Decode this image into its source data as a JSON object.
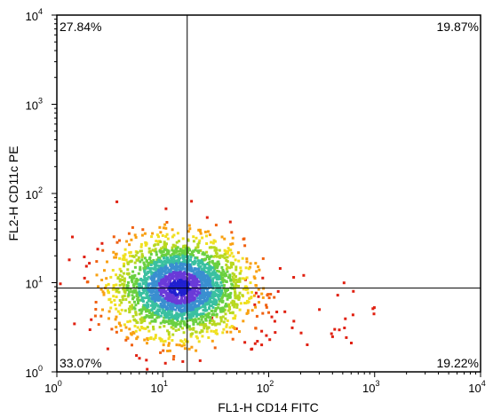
{
  "chart_data": {
    "type": "heatmap",
    "subtype": "flow-cytometry-density-dot-plot",
    "xlabel": "FL1-H CD14 FITC",
    "ylabel": "FL2-H CD11c PE",
    "x_scale": "log",
    "y_scale": "log",
    "xlim": [
      1,
      10000
    ],
    "ylim": [
      1,
      10000
    ],
    "x_ticks": [
      {
        "base": "10",
        "exp": "0",
        "value": 1
      },
      {
        "base": "10",
        "exp": "1",
        "value": 10
      },
      {
        "base": "10",
        "exp": "2",
        "value": 100
      },
      {
        "base": "10",
        "exp": "3",
        "value": 1000
      },
      {
        "base": "10",
        "exp": "4",
        "value": 10000
      }
    ],
    "y_ticks": [
      {
        "base": "10",
        "exp": "0",
        "value": 1
      },
      {
        "base": "10",
        "exp": "1",
        "value": 10
      },
      {
        "base": "10",
        "exp": "2",
        "value": 100
      },
      {
        "base": "10",
        "exp": "3",
        "value": 1000
      },
      {
        "base": "10",
        "exp": "4",
        "value": 10000
      }
    ],
    "quadrant_gate": {
      "x": 17,
      "y": 8.7
    },
    "quadrants": {
      "upper_left": "27.84%",
      "upper_right": "19.87%",
      "lower_left": "33.07%",
      "lower_right": "19.22%"
    },
    "population": {
      "center_x": 14.5,
      "center_y": 8.8,
      "spread_log_x": 0.3,
      "spread_log_y": 0.27,
      "colormap": [
        "#2020d0",
        "#6a3ad8",
        "#3a8fd0",
        "#3ac0a0",
        "#6ad040",
        "#b8d820",
        "#f0e020",
        "#f8a010",
        "#f06010",
        "#e02010"
      ]
    },
    "grid": false,
    "legend": "none"
  }
}
